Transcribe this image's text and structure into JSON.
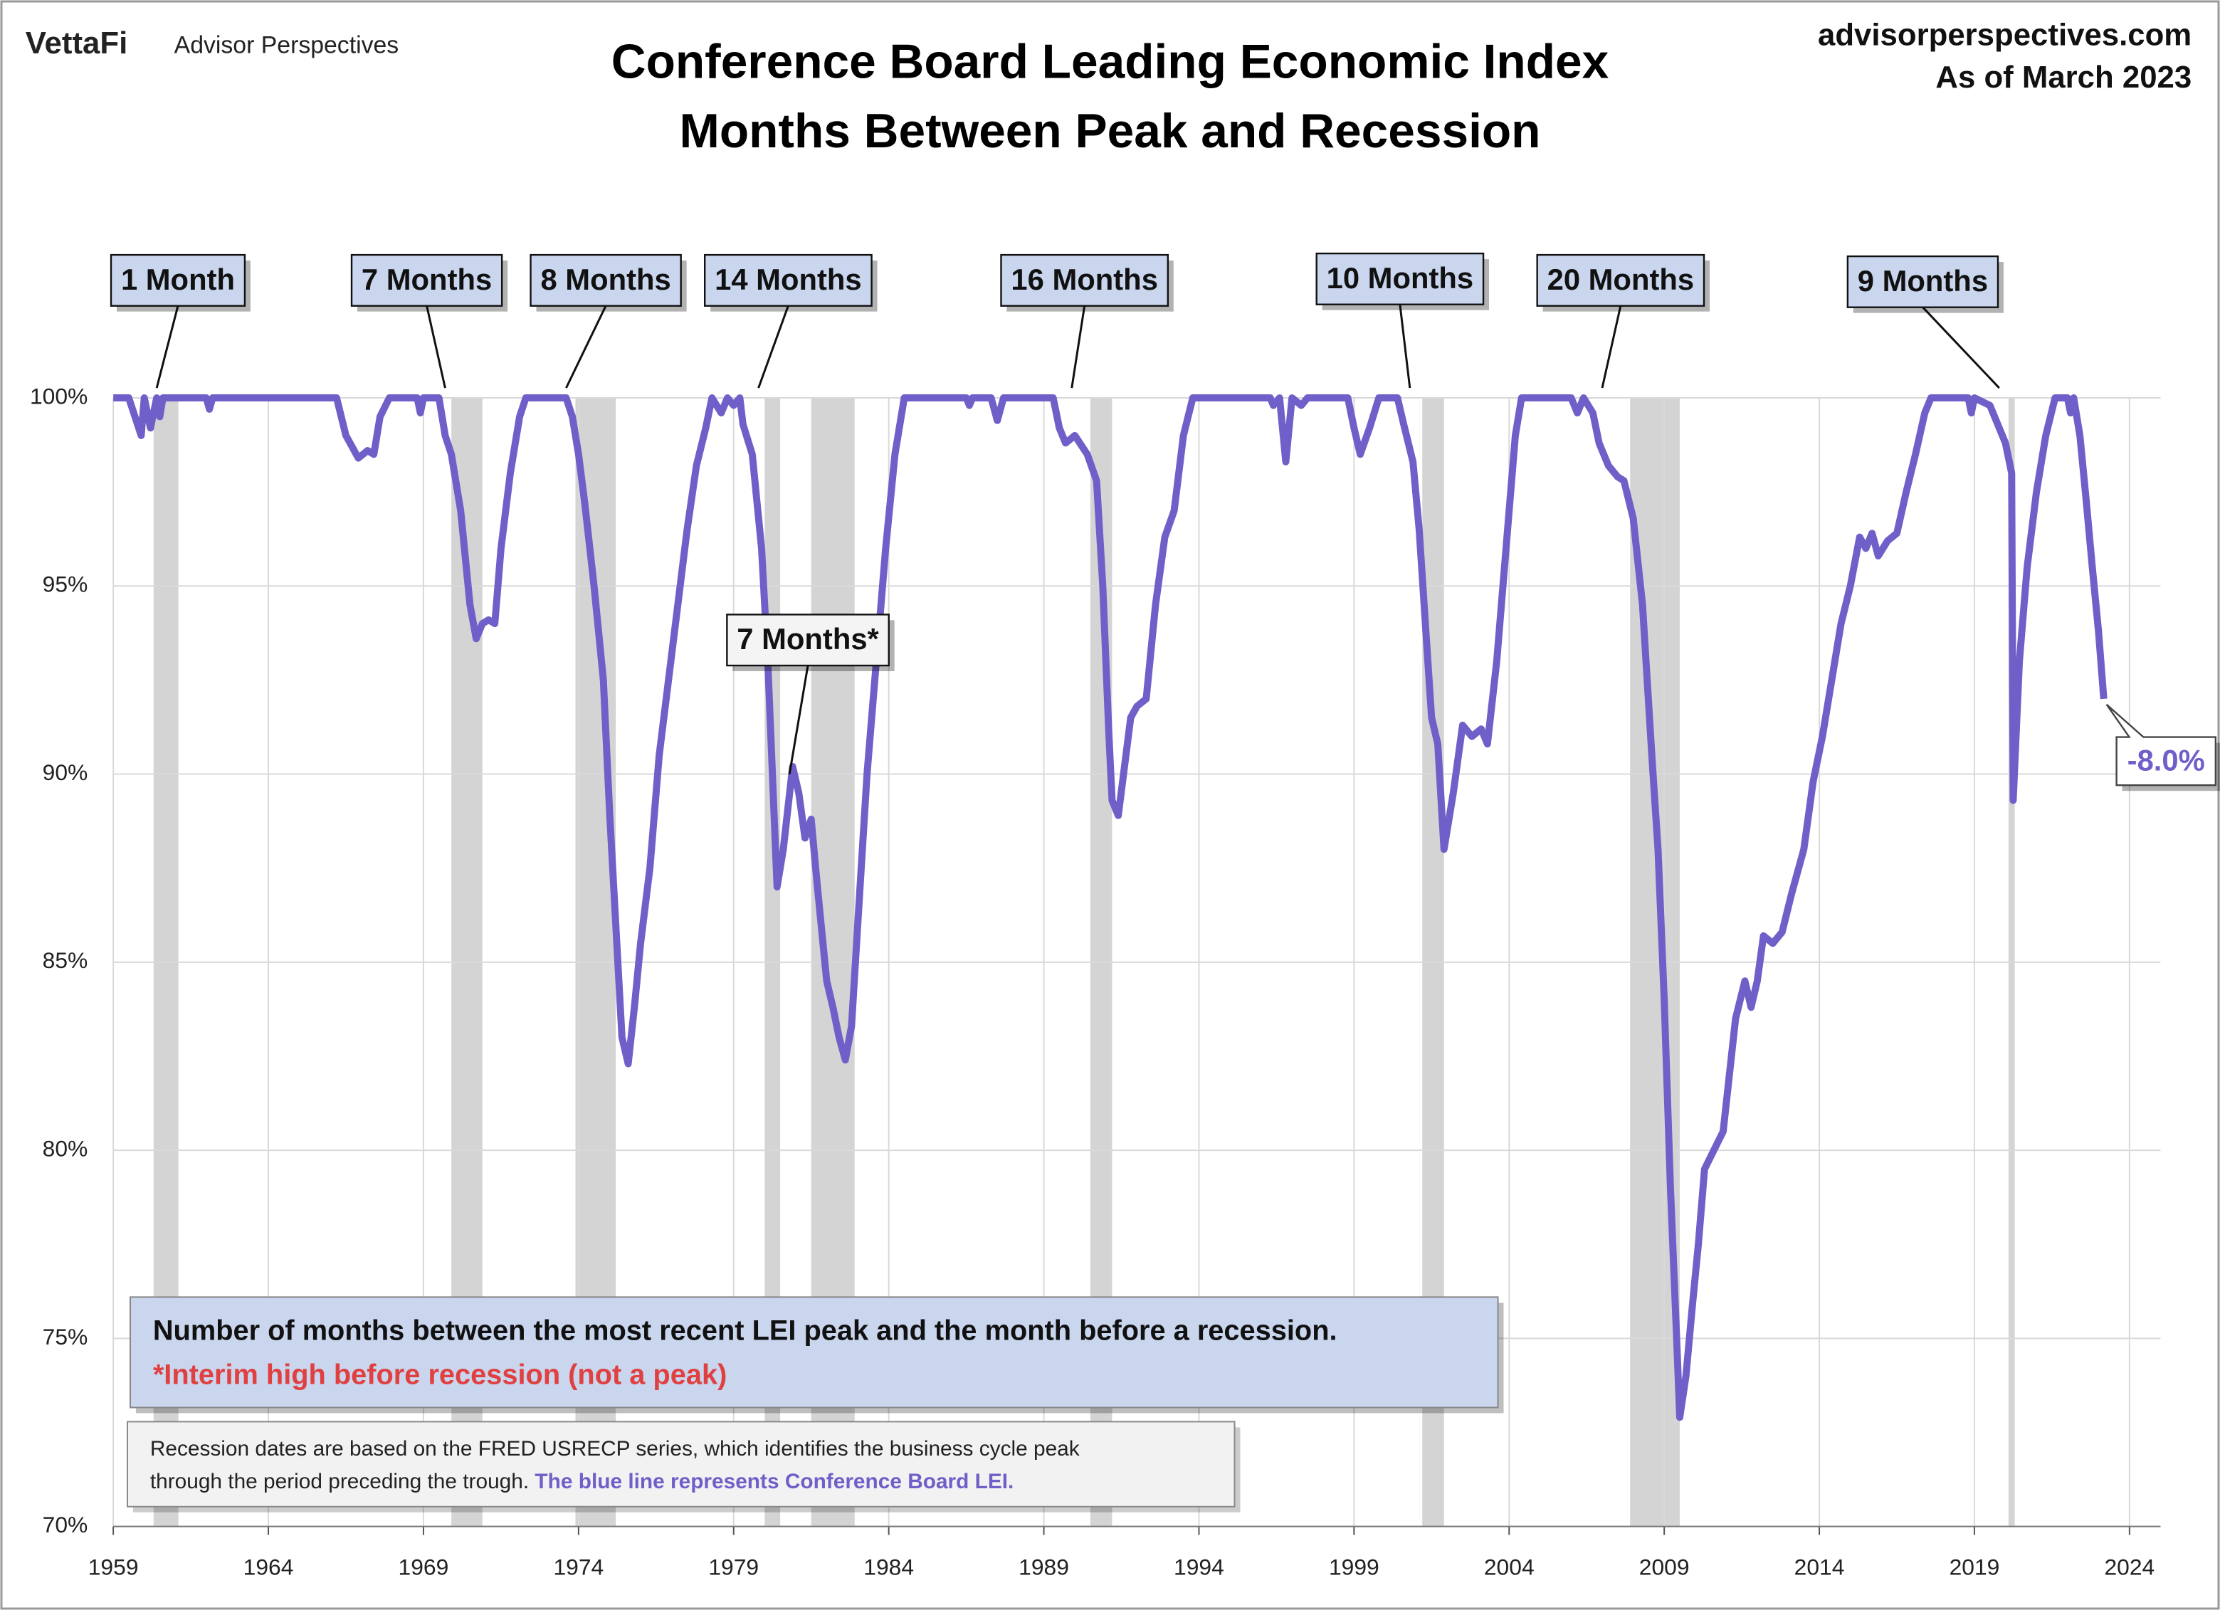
{
  "header": {
    "brand": "VettaFi",
    "brand_sub": "Advisor Perspectives",
    "site": "advisorperspectives.com",
    "as_of": "As of March 2023"
  },
  "chart_data": {
    "type": "line",
    "title": "Conference Board Leading Economic Index",
    "subtitle": "Months Between Peak and Recession",
    "x": [
      1959.0,
      1959.5,
      1959.7,
      1959.9,
      1960.0,
      1960.2,
      1960.4,
      1960.5,
      1960.6,
      1962.0,
      1962.1,
      1962.2,
      1966.2,
      1966.5,
      1966.9,
      1967.2,
      1967.4,
      1967.6,
      1967.9,
      1968.8,
      1968.9,
      1969.0,
      1969.5,
      1969.7,
      1969.9,
      1970.2,
      1970.5,
      1970.7,
      1970.9,
      1971.1,
      1971.3,
      1971.5,
      1971.8,
      1972.1,
      1972.3,
      1973.6,
      1973.8,
      1974.0,
      1974.2,
      1974.5,
      1974.8,
      1975.0,
      1975.2,
      1975.4,
      1975.6,
      1975.8,
      1976.0,
      1976.3,
      1976.6,
      1976.9,
      1977.2,
      1977.5,
      1977.8,
      1978.1,
      1978.3,
      1978.6,
      1978.8,
      1979.0,
      1979.2,
      1979.3,
      1979.6,
      1979.9,
      1980.1,
      1980.3,
      1980.4,
      1980.6,
      1980.9,
      1981.1,
      1981.3,
      1981.5,
      1981.7,
      1982.0,
      1982.2,
      1982.4,
      1982.6,
      1982.8,
      1983.0,
      1983.3,
      1983.6,
      1983.9,
      1984.2,
      1984.5,
      1986.5,
      1986.6,
      1986.7,
      1987.3,
      1987.5,
      1987.7,
      1989.3,
      1989.5,
      1989.7,
      1990.0,
      1990.4,
      1990.7,
      1990.9,
      1991.1,
      1991.2,
      1991.4,
      1991.6,
      1991.8,
      1992.0,
      1992.3,
      1992.6,
      1992.9,
      1993.2,
      1993.5,
      1993.8,
      1996.3,
      1996.4,
      1996.6,
      1996.8,
      1997.0,
      1997.3,
      1997.5,
      1998.8,
      1999.0,
      1999.2,
      1999.5,
      1999.8,
      2000.4,
      2000.6,
      2000.9,
      2001.1,
      2001.3,
      2001.5,
      2001.7,
      2001.9,
      2002.2,
      2002.5,
      2002.8,
      2003.1,
      2003.3,
      2003.6,
      2003.9,
      2004.2,
      2004.4,
      2006.0,
      2006.2,
      2006.4,
      2006.7,
      2006.9,
      2007.2,
      2007.5,
      2007.7,
      2008.0,
      2008.3,
      2008.6,
      2008.8,
      2009.0,
      2009.2,
      2009.4,
      2009.5,
      2009.7,
      2009.9,
      2010.1,
      2010.3,
      2010.6,
      2010.9,
      2011.1,
      2011.3,
      2011.6,
      2011.8,
      2012.0,
      2012.2,
      2012.5,
      2012.8,
      2013.1,
      2013.5,
      2013.8,
      2014.1,
      2014.4,
      2014.7,
      2015.0,
      2015.3,
      2015.5,
      2015.7,
      2015.9,
      2016.2,
      2016.5,
      2016.8,
      2017.1,
      2017.4,
      2017.6,
      2018.8,
      2018.9,
      2019.0,
      2019.5,
      2019.8,
      2020.0,
      2020.2,
      2020.25,
      2020.45,
      2020.7,
      2021.0,
      2021.3,
      2021.6,
      2022.0,
      2022.1,
      2022.2,
      2022.4,
      2022.6,
      2022.8,
      2023.0,
      2023.17
    ],
    "series": [
      {
        "color": "#6f5fc8",
        "values": [
          100,
          100,
          99.5,
          99,
          100,
          99.2,
          100,
          99.5,
          100,
          100,
          99.7,
          100,
          100,
          99,
          98.4,
          98.6,
          98.5,
          99.5,
          100,
          100,
          99.6,
          100,
          100,
          99,
          98.5,
          97,
          94.5,
          93.6,
          94,
          94.1,
          94,
          96,
          98,
          99.5,
          100,
          100,
          99.5,
          98.5,
          97.2,
          95,
          92.5,
          89,
          86,
          83,
          82.3,
          83.8,
          85.5,
          87.5,
          90.5,
          92.5,
          94.5,
          96.5,
          98.2,
          99.2,
          100,
          99.6,
          100,
          99.8,
          100,
          99.3,
          98.5,
          96,
          93,
          89,
          87,
          88,
          90.2,
          89.5,
          88.3,
          88.8,
          87,
          84.5,
          83.8,
          83,
          82.4,
          83.3,
          86,
          90,
          93,
          96,
          98.5,
          100,
          100,
          99.8,
          100,
          100,
          99.4,
          100,
          100,
          99.2,
          98.8,
          99,
          98.5,
          97.8,
          95,
          91,
          89.3,
          88.9,
          90.2,
          91.5,
          91.8,
          92,
          94.5,
          96.3,
          97,
          99,
          100,
          100,
          99.8,
          100,
          98.3,
          100,
          99.8,
          100,
          100,
          99.2,
          98.5,
          99.2,
          100,
          100,
          99.3,
          98.3,
          96.5,
          94,
          91.5,
          90.8,
          88,
          89.5,
          91.3,
          91,
          91.2,
          90.8,
          93,
          96,
          99,
          100,
          100,
          99.6,
          100,
          99.6,
          98.8,
          98.2,
          97.9,
          97.8,
          96.8,
          94.5,
          90.5,
          88,
          84,
          79,
          75,
          72.9,
          74,
          75.8,
          77.5,
          79.5,
          80,
          80.5,
          82,
          83.5,
          84.5,
          83.8,
          84.5,
          85.7,
          85.5,
          85.8,
          86.8,
          88,
          89.8,
          91,
          92.5,
          94,
          95,
          96.3,
          96,
          96.4,
          95.8,
          96.2,
          96.4,
          97.5,
          98.5,
          99.6,
          100,
          100,
          99.6,
          100,
          99.8,
          99.2,
          98.8,
          98,
          89.3,
          93,
          95.5,
          97.5,
          99,
          100,
          100,
          99.6,
          100,
          99,
          97.3,
          95.5,
          93.8,
          92
        ]
      }
    ],
    "recessions": [
      [
        1960.3,
        1961.1
      ],
      [
        1969.9,
        1970.9
      ],
      [
        1973.9,
        1975.2
      ],
      [
        1980.0,
        1980.5
      ],
      [
        1981.5,
        1982.9
      ],
      [
        1990.5,
        1991.2
      ],
      [
        2001.2,
        2001.9
      ],
      [
        2007.9,
        2009.5
      ],
      [
        2020.1,
        2020.3
      ]
    ],
    "xlim": [
      1959,
      2025
    ],
    "xticks": [
      1959,
      1964,
      1969,
      1974,
      1979,
      1984,
      1989,
      1994,
      1999,
      2004,
      2009,
      2014,
      2019,
      2024
    ],
    "ylim": [
      70,
      100
    ],
    "yticks": [
      {
        "value": 70,
        "label": "70%"
      },
      {
        "value": 75,
        "label": "75%"
      },
      {
        "value": 80,
        "label": "80%"
      },
      {
        "value": 85,
        "label": "85%"
      },
      {
        "value": 90,
        "label": "90%"
      },
      {
        "value": 95,
        "label": "95%"
      },
      {
        "value": 100,
        "label": "100%"
      }
    ],
    "grid": true,
    "annotations": [
      {
        "label": "1 Month",
        "x": 1960.4,
        "y": 100
      },
      {
        "label": "7 Months",
        "x": 1969.7,
        "y": 100
      },
      {
        "label": "8 Months",
        "x": 1973.6,
        "y": 100
      },
      {
        "label": "14 Months",
        "x": 1979.8,
        "y": 100
      },
      {
        "label": "16 Months",
        "x": 1989.9,
        "y": 100
      },
      {
        "label": "10 Months",
        "x": 2000.8,
        "y": 100
      },
      {
        "label": "20 Months",
        "x": 2007.0,
        "y": 100
      },
      {
        "label": "9 Months",
        "x": 2019.8,
        "y": 100
      },
      {
        "label": "7 Months*",
        "x": 1980.8,
        "y": 90
      }
    ],
    "end_label": "-8.0%",
    "note": [
      "Number of months between the most recent LEI peak and the month before a recession.",
      "*Interim high before recession (not a peak)"
    ],
    "footnote": [
      "Recession dates are based on the FRED USRECP series, which identifies the business cycle peak",
      "through the period preceding the trough.",
      "The blue line represents Conference Board LEI."
    ]
  }
}
